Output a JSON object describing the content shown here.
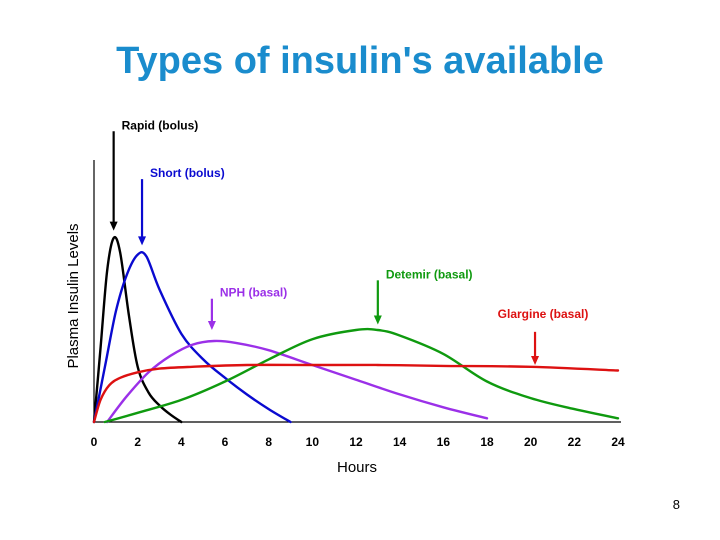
{
  "slide": {
    "title": "Types of insulin's available",
    "page_number": "8"
  },
  "chart_data": {
    "type": "line",
    "title": "",
    "xlabel": "Hours",
    "ylabel": "Plasma Insulin Levels",
    "xlim": [
      0,
      24
    ],
    "ylim": [
      0,
      100
    ],
    "x_ticks": [
      "0",
      "2",
      "4",
      "6",
      "8",
      "10",
      "12",
      "14",
      "16",
      "18",
      "20",
      "22",
      "24"
    ],
    "grid": false,
    "legend": "none (series labelled by annotations with arrows)",
    "series": [
      {
        "name": "Rapid (bolus)",
        "color": "#000000",
        "x": [
          0,
          0.3,
          0.6,
          0.9,
          1.2,
          1.6,
          2.0,
          2.5,
          3.0,
          3.5,
          4.0
        ],
        "y": [
          0,
          40,
          82,
          100,
          92,
          58,
          30,
          16,
          9,
          4,
          0
        ]
      },
      {
        "name": "Short (bolus)",
        "color": "#0a0ad0",
        "x": [
          0,
          0.5,
          1.0,
          1.5,
          2.0,
          2.4,
          3.0,
          4.0,
          5.0,
          6.0,
          7.0,
          8.0,
          9.0
        ],
        "y": [
          0,
          30,
          60,
          80,
          91,
          90,
          72,
          48,
          34,
          24,
          15,
          7,
          0
        ]
      },
      {
        "name": "NPH (basal)",
        "color": "#9b30e8",
        "x": [
          0.6,
          1.5,
          2.5,
          3.5,
          4.5,
          5.5,
          6.5,
          8.0,
          10.0,
          12.0,
          14.0,
          16.0,
          18.0
        ],
        "y": [
          0,
          14,
          27,
          36,
          42,
          44,
          43,
          39,
          31,
          23,
          15,
          8,
          2
        ]
      },
      {
        "name": "Detemir (basal)",
        "color": "#0f9a0f",
        "x": [
          0.5,
          2.0,
          4.0,
          6.0,
          8.0,
          10.0,
          12.0,
          13.0,
          14.0,
          16.0,
          18.0,
          20.0,
          22.0,
          24.0
        ],
        "y": [
          0,
          5,
          12,
          22,
          34,
          45,
          50,
          50,
          47,
          37,
          22,
          13,
          7,
          2
        ]
      },
      {
        "name": "Glargine (basal)",
        "color": "#dd1111",
        "x": [
          0,
          0.3,
          0.7,
          1.2,
          2.0,
          3.0,
          4.5,
          7.0,
          10.0,
          13.0,
          16.0,
          20.0,
          24.0
        ],
        "y": [
          0,
          12,
          20,
          24,
          27,
          29,
          30,
          31,
          31,
          31,
          30.5,
          30,
          28
        ]
      }
    ],
    "annotations": [
      {
        "text": "Rapid (bolus)",
        "color": "#000000",
        "arrow_x": 0.9,
        "arrow_to_y": 104,
        "arrow_from_y": 158
      },
      {
        "text": "Short (bolus)",
        "color": "#0a0ad0",
        "arrow_x": 2.2,
        "arrow_to_y": 96,
        "arrow_from_y": 132
      },
      {
        "text": "NPH (basal)",
        "color": "#9b30e8",
        "arrow_x": 5.4,
        "arrow_to_y": 50,
        "arrow_from_y": 67
      },
      {
        "text": "Detemir (basal)",
        "color": "#0f9a0f",
        "arrow_x": 13.0,
        "arrow_to_y": 53,
        "arrow_from_y": 77
      },
      {
        "text": "Glargine (basal)",
        "color": "#dd1111",
        "arrow_x": 20.2,
        "arrow_to_y": 31,
        "arrow_from_y": 49
      }
    ]
  }
}
